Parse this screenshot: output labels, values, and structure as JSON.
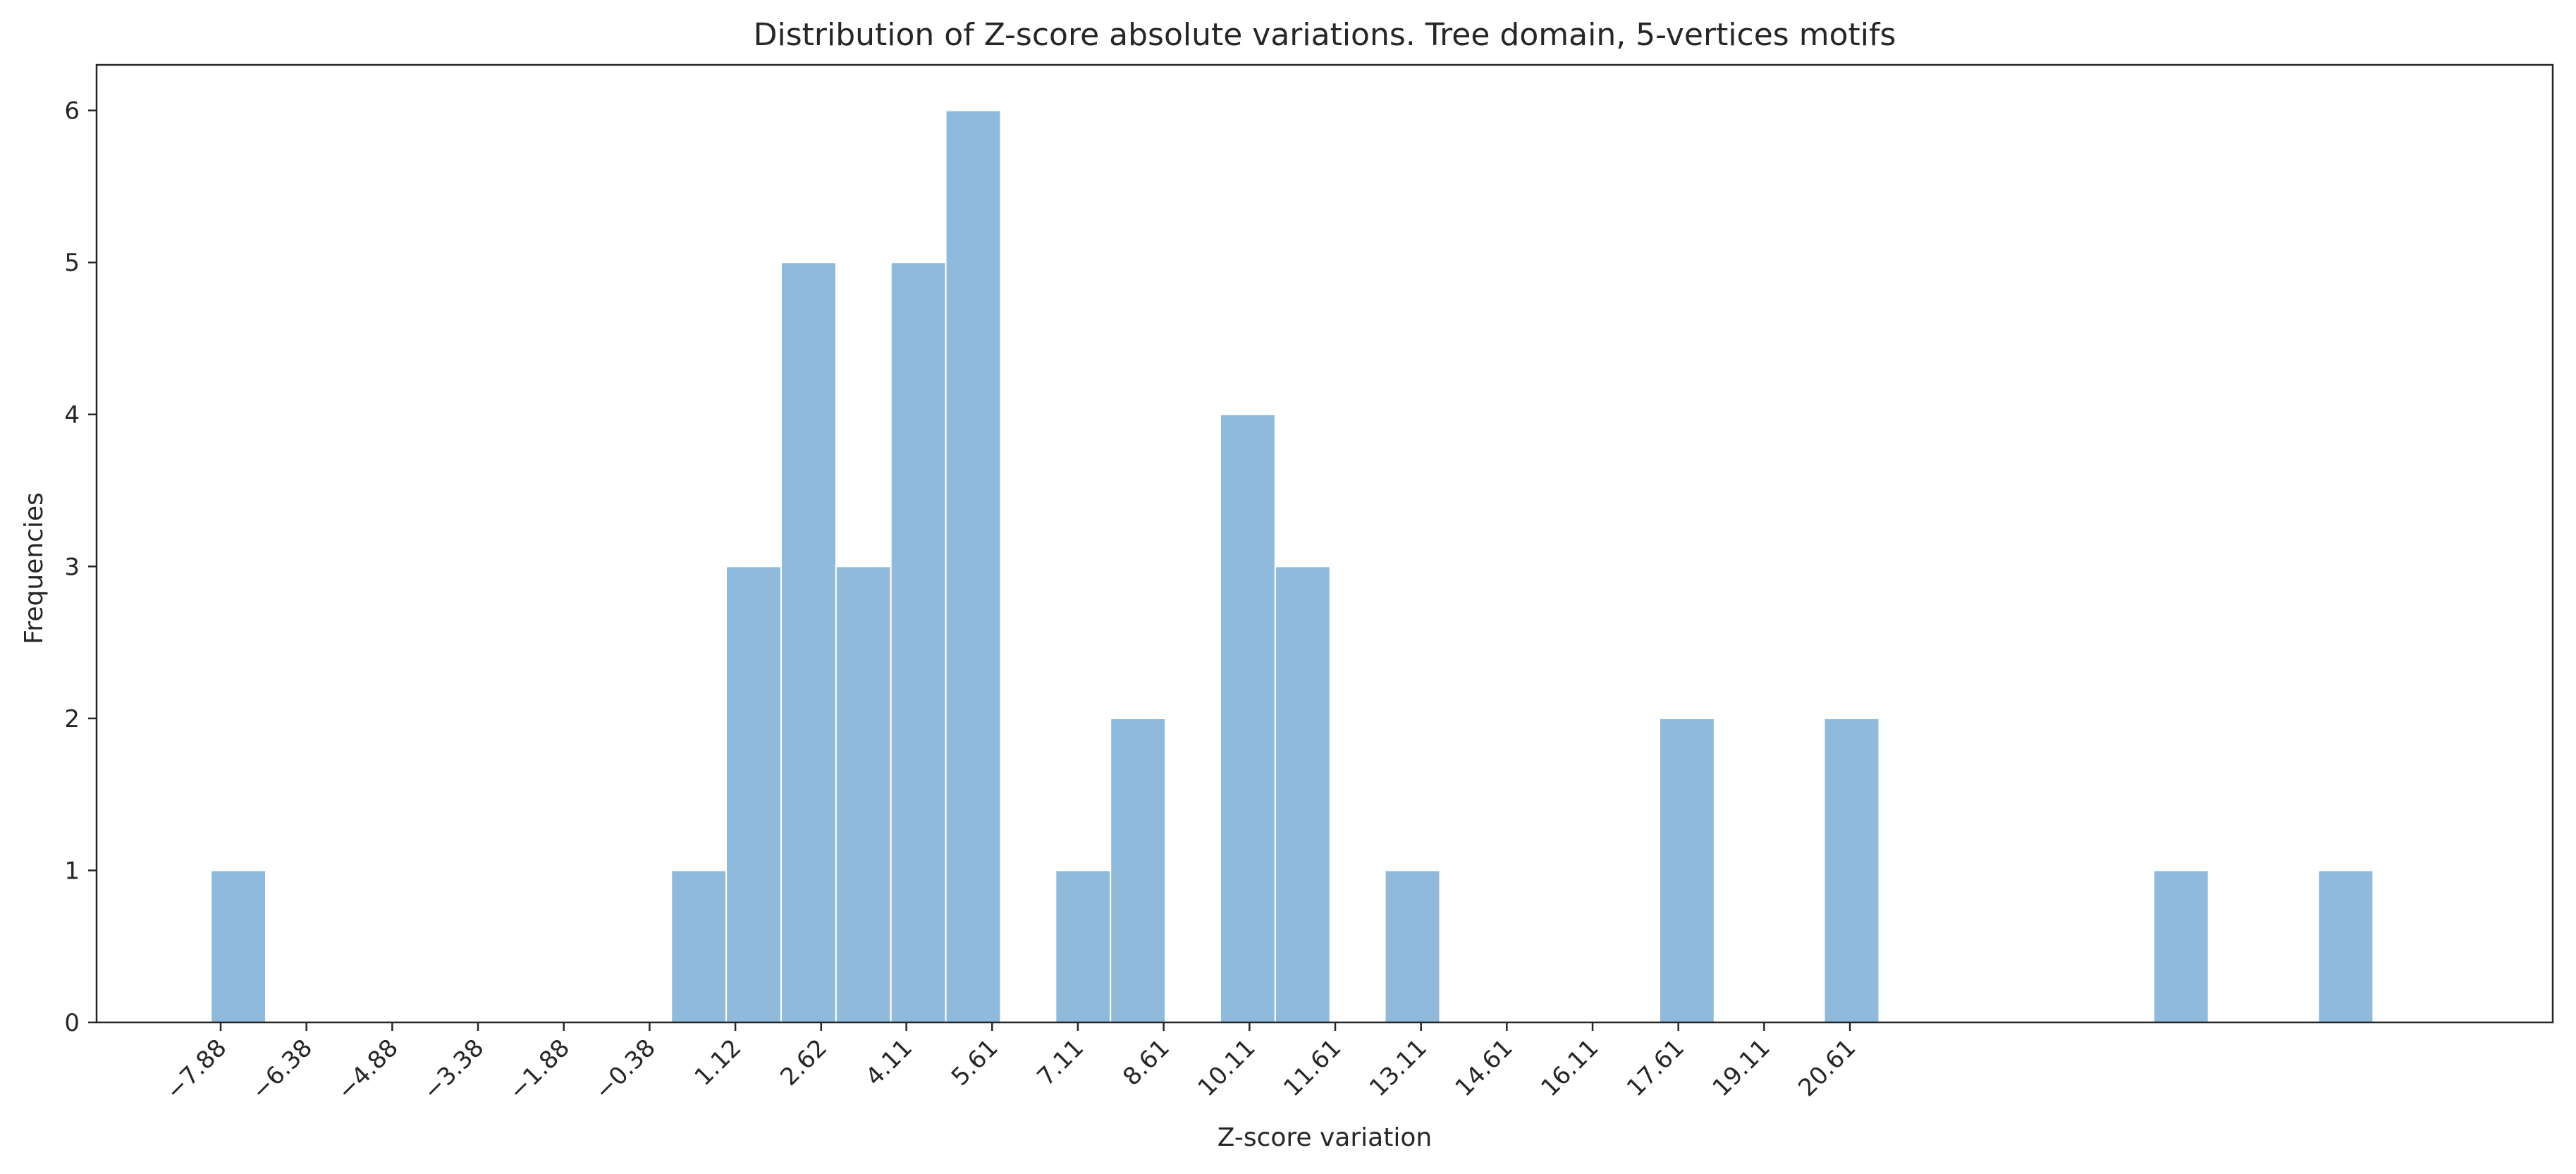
{
  "chart_data": {
    "type": "bar",
    "title": "Distribution of Z-score absolute variations. Tree domain, 5-vertices motifs",
    "xlabel": "Z-score variation",
    "ylabel": "Frequencies",
    "bar_color": "#8fbadb",
    "bar_edge_color": "#ffffff",
    "grid": false,
    "legend": "none",
    "xlim": [
      -10.05,
      32.9
    ],
    "ylim": [
      0,
      6.3
    ],
    "bin_width": 0.96,
    "x_ticks": [
      -7.88,
      -6.38,
      -4.88,
      -3.38,
      -1.88,
      -0.38,
      1.12,
      2.62,
      4.11,
      5.61,
      7.11,
      8.61,
      10.11,
      11.61,
      13.11,
      14.61,
      16.11,
      17.61,
      19.11,
      20.61
    ],
    "x_tick_labels": [
      "−7.88",
      "−6.38",
      "−4.88",
      "−3.38",
      "−1.88",
      "−0.38",
      "1.12",
      "2.62",
      "4.11",
      "5.61",
      "7.11",
      "8.61",
      "10.11",
      "11.61",
      "13.11",
      "14.61",
      "16.11",
      "17.61",
      "19.11",
      "20.61"
    ],
    "y_ticks": [
      0,
      1,
      2,
      3,
      4,
      5,
      6
    ],
    "y_tick_labels": [
      "0",
      "1",
      "2",
      "3",
      "4",
      "5",
      "6"
    ],
    "bins": [
      {
        "x": -8.05,
        "value": 1
      },
      {
        "x": 0.0,
        "value": 1
      },
      {
        "x": 0.96,
        "value": 3
      },
      {
        "x": 1.92,
        "value": 5
      },
      {
        "x": 2.88,
        "value": 3
      },
      {
        "x": 3.84,
        "value": 5
      },
      {
        "x": 4.8,
        "value": 6
      },
      {
        "x": 6.72,
        "value": 1
      },
      {
        "x": 7.68,
        "value": 2
      },
      {
        "x": 9.6,
        "value": 4
      },
      {
        "x": 10.56,
        "value": 3
      },
      {
        "x": 12.48,
        "value": 1
      },
      {
        "x": 17.28,
        "value": 2
      },
      {
        "x": 20.16,
        "value": 2
      },
      {
        "x": 25.92,
        "value": 1
      },
      {
        "x": 28.8,
        "value": 1
      }
    ]
  }
}
